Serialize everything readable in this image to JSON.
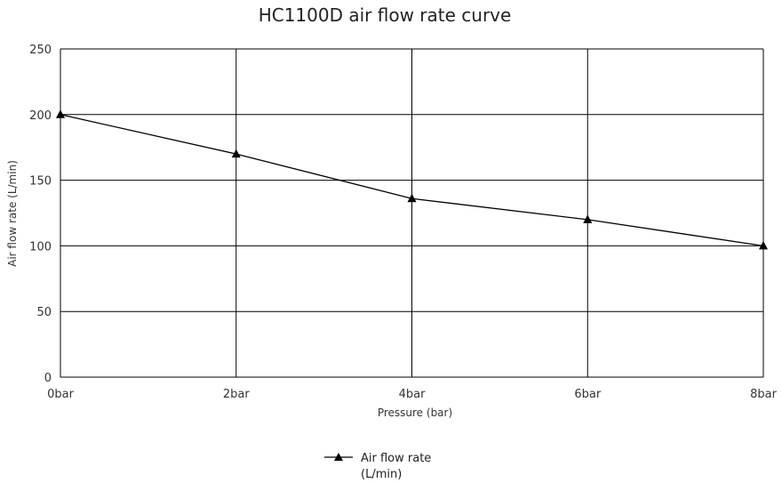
{
  "chart_data": {
    "type": "line",
    "title": "HC1100D air flow rate curve",
    "xlabel": "Pressure (bar)",
    "ylabel": "Air flow rate (L/min)",
    "categories": [
      "0bar",
      "2bar",
      "4bar",
      "6bar",
      "8bar"
    ],
    "x": [
      0,
      2,
      4,
      6,
      8
    ],
    "xlim": [
      0,
      8
    ],
    "ylim": [
      0,
      250
    ],
    "yticks": [
      0,
      50,
      100,
      150,
      200,
      250
    ],
    "grid": true,
    "legend_position": "bottom-center",
    "series": [
      {
        "name": "Air flow rate (L/min)",
        "legend_lines": [
          "Air flow rate",
          "(L/min)"
        ],
        "marker": "triangle",
        "color": "#000000",
        "values": [
          200,
          170,
          136,
          120,
          100
        ]
      }
    ]
  }
}
